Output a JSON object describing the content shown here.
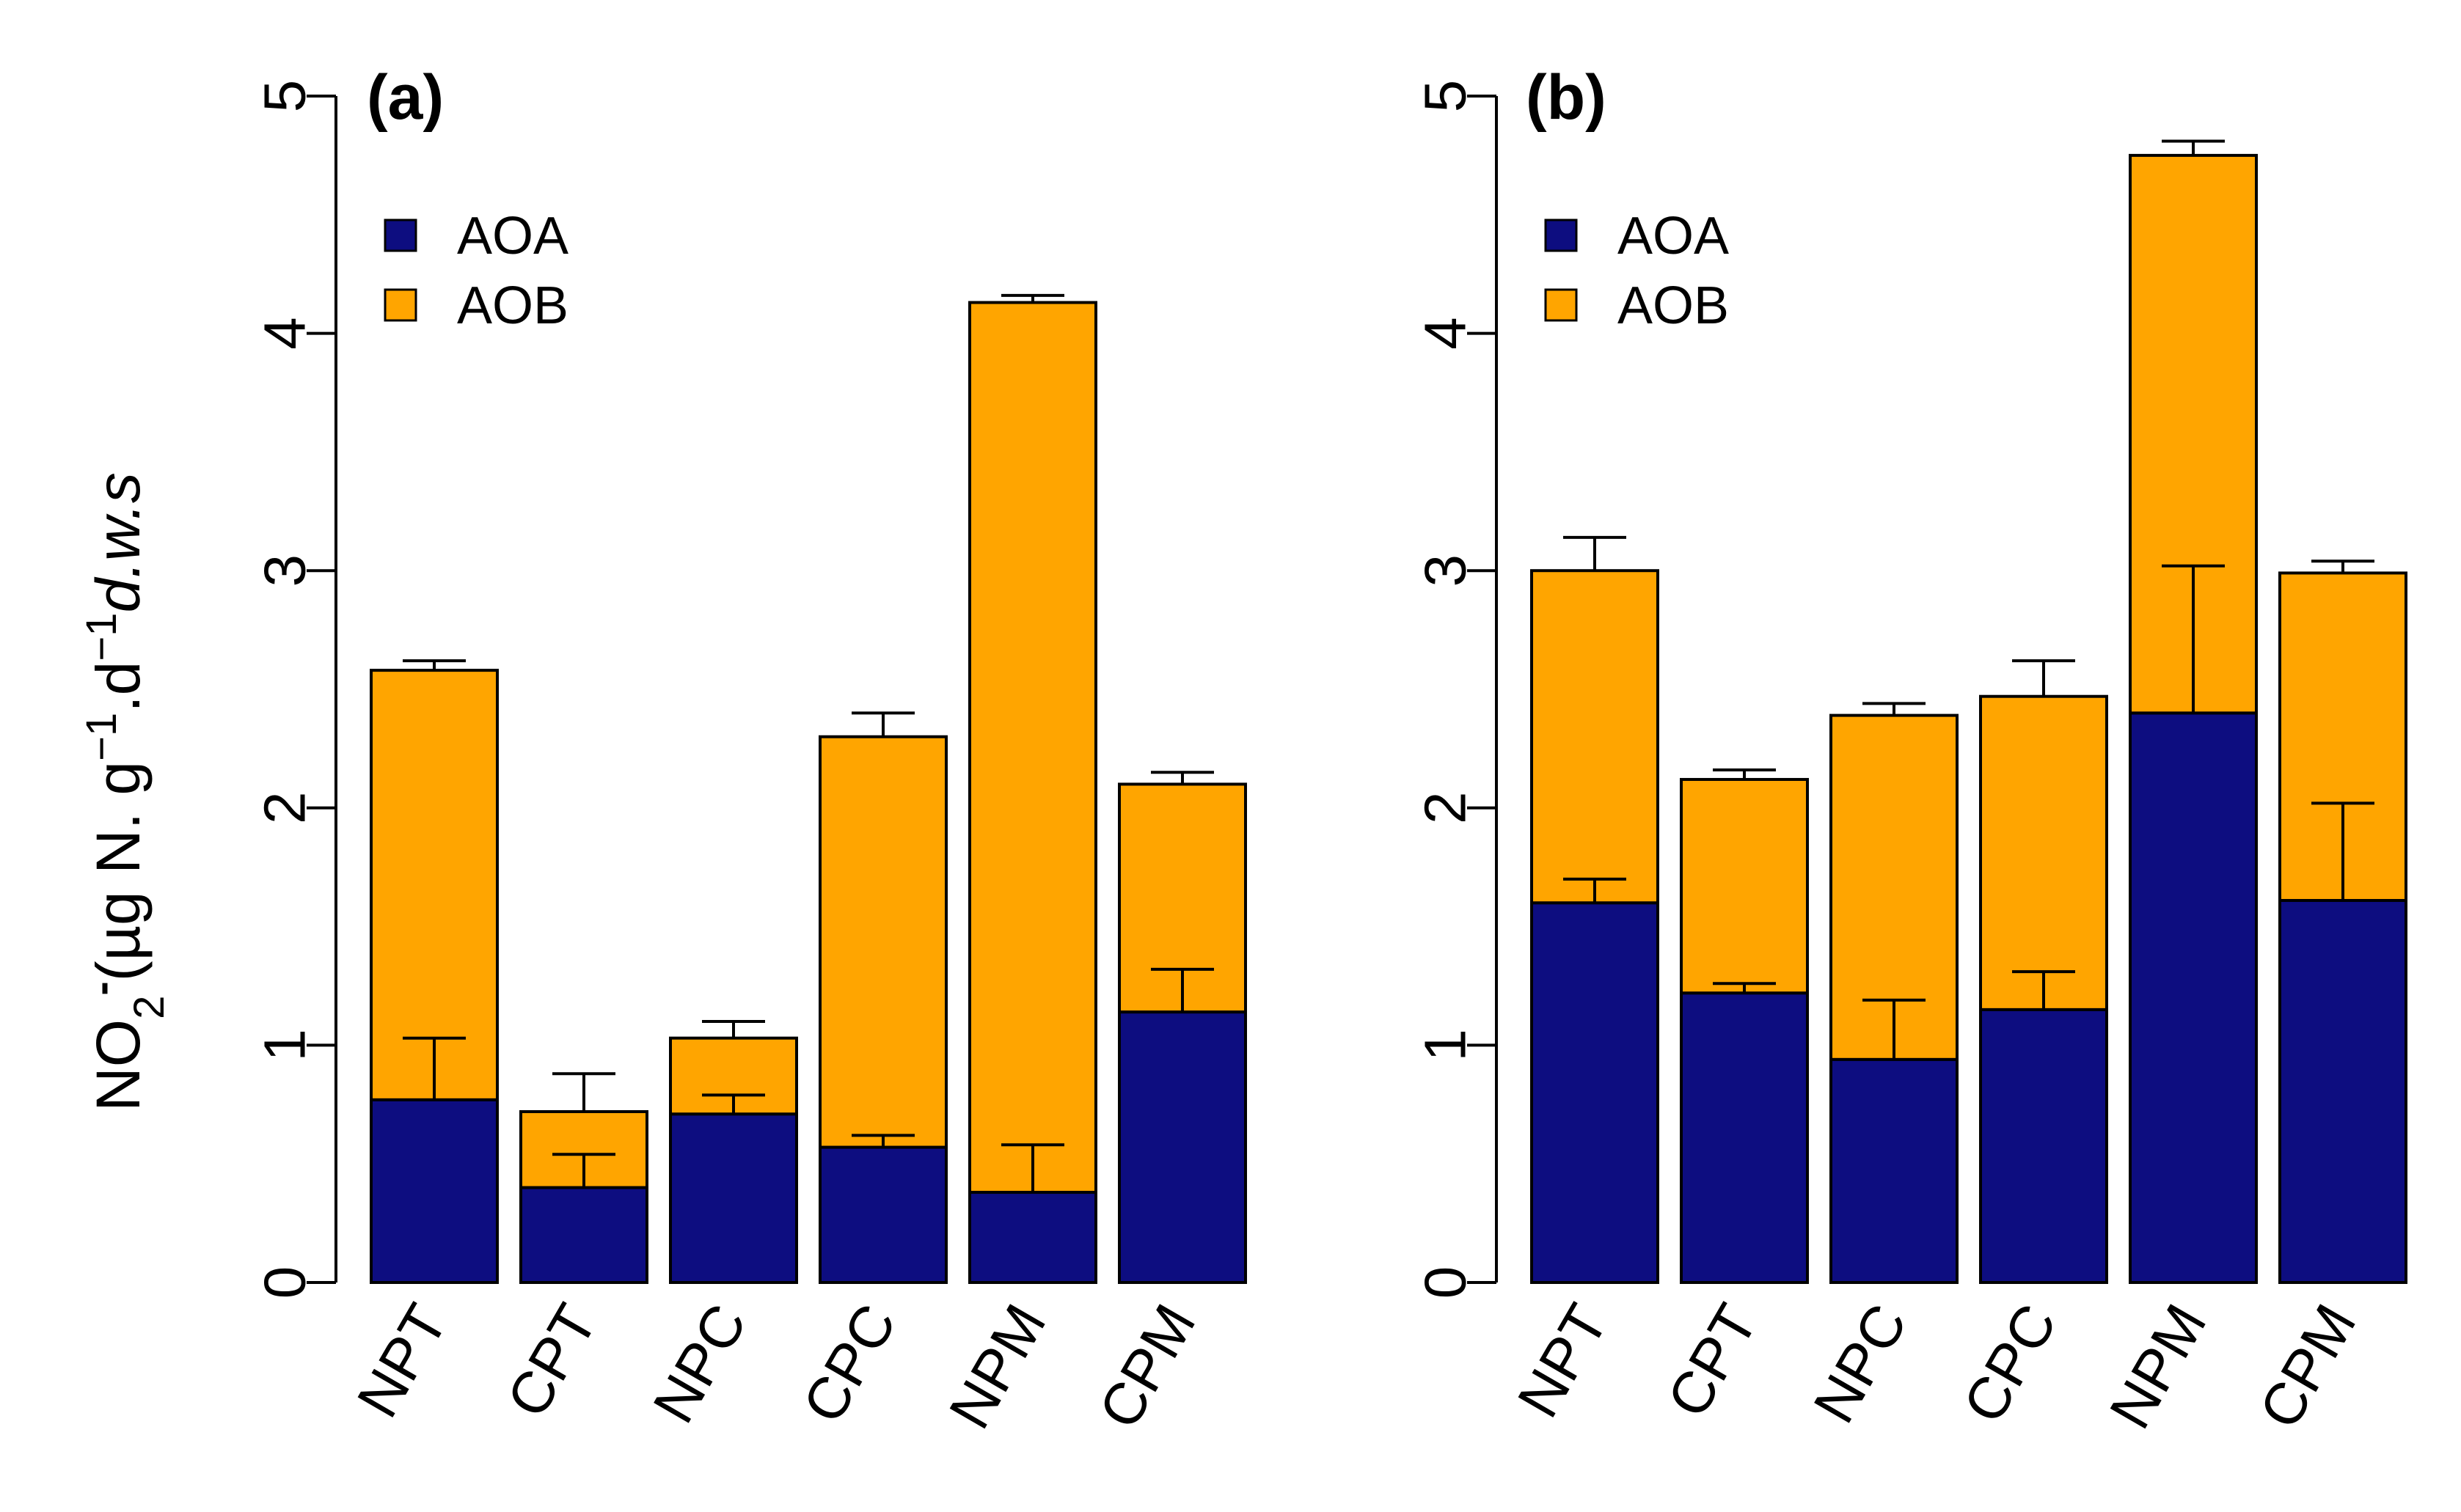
{
  "colors": {
    "aoa": "#0d0d80",
    "aob": "#ffa500",
    "axis": "#000000"
  },
  "ylabel": {
    "chem": "NO",
    "sub": "2",
    "sup": "-",
    "units_open": "(µg N. g",
    "exp1": "−1",
    "mid": ".d",
    "exp2": "−1",
    "tail": "d.w.s"
  },
  "chart_data": [
    {
      "type": "bar",
      "stacked": true,
      "panel_label": "(a)",
      "categories": [
        "NPT",
        "CPT",
        "NPC",
        "CPC",
        "NPM",
        "CPM"
      ],
      "yticks": [
        "0",
        "1",
        "2",
        "3",
        "4",
        "5"
      ],
      "ylim": [
        0,
        5
      ],
      "legend": {
        "position": "top-left",
        "entries": [
          "AOA",
          "AOB"
        ]
      },
      "series": [
        {
          "name": "AOA",
          "values": [
            0.77,
            0.4,
            0.71,
            0.57,
            0.38,
            1.14
          ],
          "errors": [
            0.26,
            0.14,
            0.08,
            0.05,
            0.2,
            0.18
          ]
        },
        {
          "name": "AOB",
          "values": [
            1.81,
            0.32,
            0.32,
            1.73,
            3.75,
            0.96
          ],
          "errors": [
            0.04,
            0.16,
            0.07,
            0.1,
            0.03,
            0.05
          ]
        }
      ],
      "totals": [
        2.58,
        0.72,
        1.03,
        2.3,
        4.13,
        2.1
      ]
    },
    {
      "type": "bar",
      "stacked": true,
      "panel_label": "(b)",
      "categories": [
        "NPT",
        "CPT",
        "NPC",
        "CPC",
        "NPM",
        "CPM"
      ],
      "yticks": [
        "0",
        "1",
        "2",
        "3",
        "4",
        "5"
      ],
      "ylim": [
        0,
        5
      ],
      "legend": {
        "position": "top-left",
        "entries": [
          "AOA",
          "AOB"
        ]
      },
      "series": [
        {
          "name": "AOA",
          "values": [
            1.6,
            1.22,
            0.94,
            1.15,
            2.4,
            1.61
          ],
          "errors": [
            0.1,
            0.04,
            0.25,
            0.16,
            0.62,
            0.41
          ]
        },
        {
          "name": "AOB",
          "values": [
            1.4,
            0.9,
            1.45,
            1.32,
            2.35,
            1.38
          ],
          "errors": [
            0.14,
            0.04,
            0.05,
            0.15,
            0.06,
            0.05
          ]
        }
      ],
      "totals": [
        3.0,
        2.12,
        2.39,
        2.47,
        4.75,
        2.99
      ]
    }
  ]
}
